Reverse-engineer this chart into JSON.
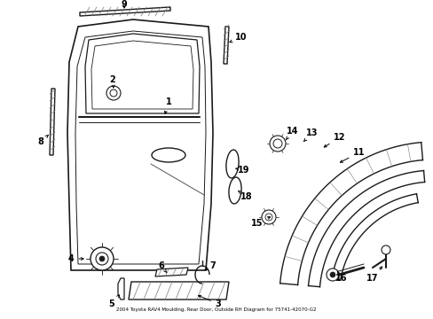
{
  "title": "2004 Toyota RAV4 Moulding, Rear Door, Outside RH Diagram for 75741-42070-G2",
  "bg_color": "#ffffff",
  "fig_width": 4.89,
  "fig_height": 3.6,
  "dpi": 100
}
